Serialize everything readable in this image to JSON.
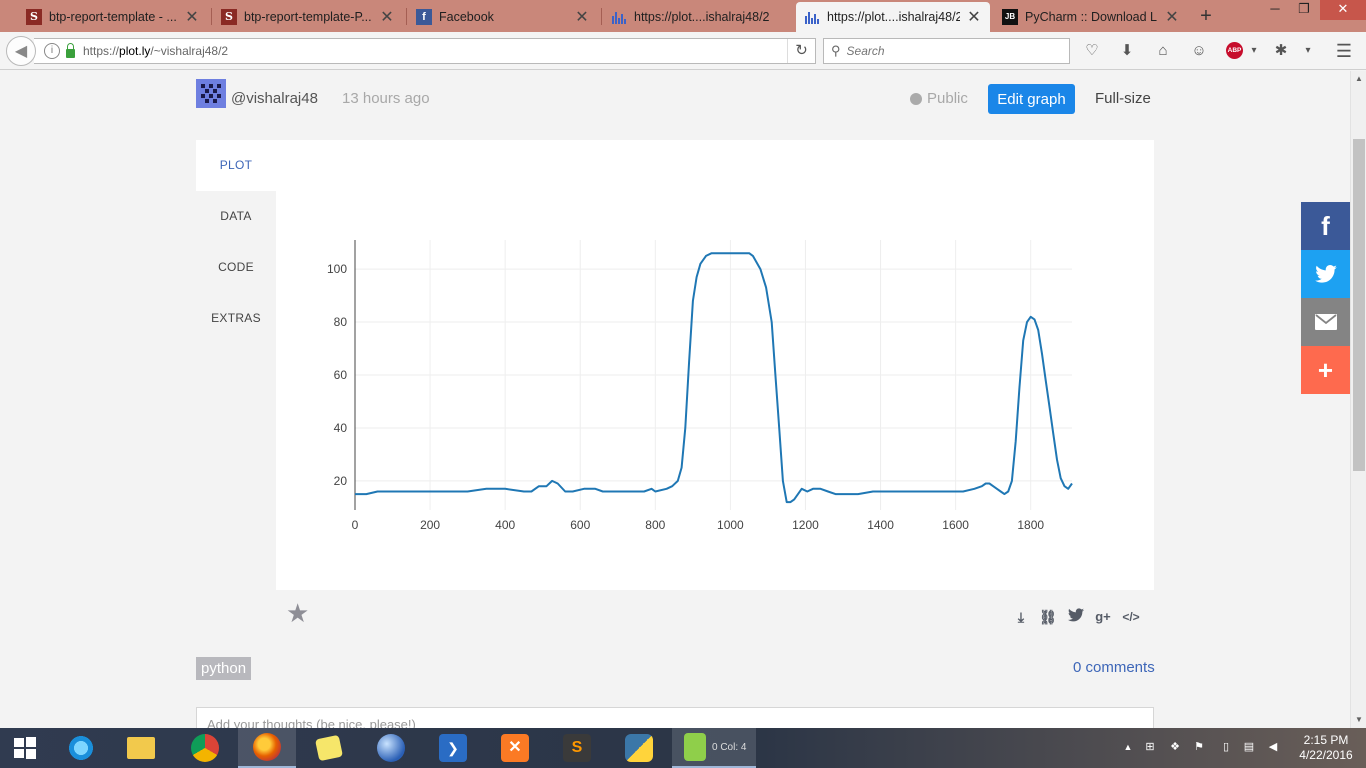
{
  "browser": {
    "tabs": [
      {
        "title": "btp-report-template - ...",
        "favicon": "S"
      },
      {
        "title": "btp-report-template-P...",
        "favicon": "S"
      },
      {
        "title": "Facebook",
        "favicon": "f"
      },
      {
        "title": "https://plot....ishalraj48/2",
        "favicon": "plotly-icon"
      },
      {
        "title": "https://plot....ishalraj48/2",
        "favicon": "plotly-icon",
        "active": true
      },
      {
        "title": "PyCharm :: Download L...",
        "favicon": "JB"
      }
    ],
    "url_prefix": "https://",
    "url_host": "plot.ly",
    "url_path": "/~vishalraj48/2",
    "search_placeholder": "Search",
    "abp_label": "ABP"
  },
  "header": {
    "username": "@vishalraj48",
    "timestamp": "13 hours ago",
    "privacy": "Public",
    "edit_label": "Edit graph",
    "fullsize_label": "Full-size"
  },
  "side_tabs": [
    "PLOT",
    "DATA",
    "CODE",
    "EXTRAS"
  ],
  "chart_data": {
    "type": "line",
    "title": "",
    "xlabel": "",
    "ylabel": "",
    "xlim": [
      0,
      1910
    ],
    "ylim": [
      9,
      111
    ],
    "xticks": [
      0,
      200,
      400,
      600,
      800,
      1000,
      1200,
      1400,
      1600,
      1800
    ],
    "yticks": [
      20,
      40,
      60,
      80,
      100
    ],
    "grid": true,
    "line_color": "#1f77b4",
    "series": [
      {
        "x": [
          0,
          30,
          60,
          100,
          150,
          200,
          250,
          300,
          350,
          400,
          450,
          470,
          490,
          510,
          525,
          540,
          560,
          580,
          610,
          640,
          660,
          690,
          720,
          750,
          770,
          790,
          800,
          830,
          845,
          860,
          870,
          880,
          890,
          900,
          910,
          920,
          935,
          950,
          975,
          1000,
          1025,
          1050,
          1060,
          1080,
          1095,
          1110,
          1120,
          1130,
          1140,
          1150,
          1160,
          1170,
          1180,
          1190,
          1205,
          1220,
          1240,
          1260,
          1280,
          1300,
          1340,
          1380,
          1420,
          1460,
          1500,
          1540,
          1580,
          1620,
          1650,
          1670,
          1680,
          1690,
          1700,
          1710,
          1720,
          1730,
          1740,
          1750,
          1760,
          1770,
          1780,
          1790,
          1800,
          1810,
          1820,
          1830,
          1840,
          1850,
          1860,
          1870,
          1880,
          1890,
          1900,
          1910
        ],
        "y": [
          15,
          15,
          16,
          16,
          16,
          16,
          16,
          16,
          17,
          17,
          16,
          16,
          18,
          18,
          20,
          19,
          16,
          16,
          17,
          17,
          16,
          16,
          16,
          16,
          16,
          17,
          16,
          17,
          18,
          20,
          25,
          40,
          65,
          88,
          97,
          102,
          105,
          106,
          106,
          106,
          106,
          106,
          105,
          100,
          93,
          80,
          60,
          40,
          20,
          12,
          12,
          13,
          15,
          17,
          16,
          17,
          17,
          16,
          15,
          15,
          15,
          16,
          16,
          16,
          16,
          16,
          16,
          16,
          17,
          18,
          19,
          19,
          18,
          17,
          16,
          15,
          16,
          20,
          35,
          55,
          73,
          80,
          82,
          81,
          77,
          68,
          58,
          48,
          38,
          28,
          21,
          18,
          17,
          19
        ]
      }
    ]
  },
  "share_icons": [
    "download-icon",
    "link-icon",
    "twitter-icon",
    "google-plus-icon",
    "embed-icon"
  ],
  "tag": "python",
  "comments_link": "0 comments",
  "comment_placeholder": "Add your thoughts (be nice, please!)",
  "colors": {
    "accent": "#1a86e8",
    "facebook": "#3b5998",
    "twitter": "#1da1f2",
    "email": "#848484",
    "more": "#fe6a4e",
    "link": "#3d66b8"
  },
  "taskbar": {
    "notepad_status": "0 Col: 4",
    "time": "2:15 PM",
    "date": "4/22/2016"
  }
}
